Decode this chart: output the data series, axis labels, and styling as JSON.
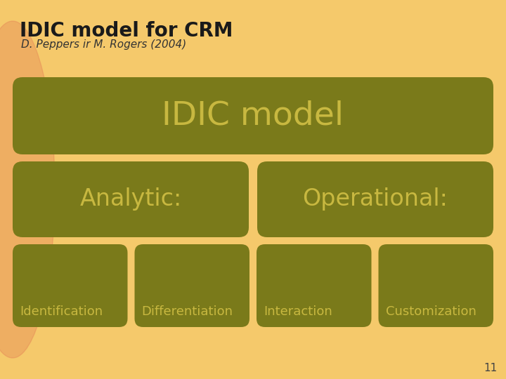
{
  "title": "IDIC model for CRM",
  "subtitle": "D. Peppers ir M. Rogers (2004)",
  "bg_color": "#F5C96B",
  "box_color": "#7A7A1A",
  "box_text_color": "#C8B840",
  "main_label": "IDIC model",
  "analytic_label": "Analytic:",
  "operational_label": "Operational:",
  "sub_labels": [
    "Identification",
    "Differentiation",
    "Interaction",
    "Customization"
  ],
  "page_number": "11",
  "title_fontsize": 20,
  "subtitle_fontsize": 11,
  "main_fontsize": 34,
  "mid_fontsize": 24,
  "sub_fontsize": 13
}
